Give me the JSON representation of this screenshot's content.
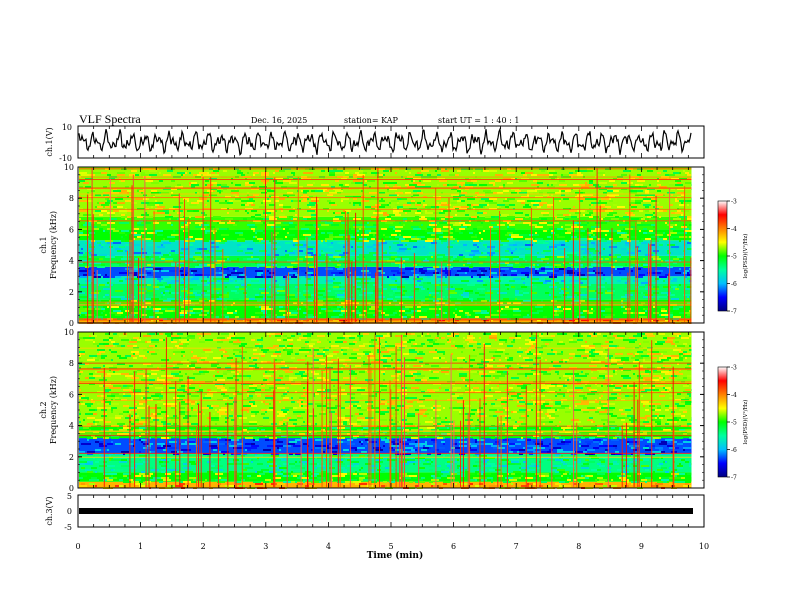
{
  "header": {
    "title": "VLF Spectra",
    "date": "Dec. 16, 2025",
    "station": "station= KAP",
    "start": "start  UT =   1 : 40 : 1"
  },
  "chart_data": {
    "type": "heatmap",
    "xlabel": "Time  (min)",
    "xlim": [
      0,
      10
    ],
    "xticks": [
      "0",
      "1",
      "2",
      "3",
      "4",
      "5",
      "6",
      "7",
      "8",
      "9",
      "10"
    ],
    "data_end_min": 9.8,
    "panels": [
      {
        "id": "ch1_waveform",
        "ylabel": "ch.1(V)",
        "ylim": [
          -10,
          10
        ],
        "yticks": [
          "10",
          "-10"
        ]
      },
      {
        "id": "ch1_spectrogram",
        "ylabel_line1": "ch.1",
        "ylabel_line2": "Frequency  (kHz)",
        "ylim": [
          0,
          10
        ],
        "yticks": [
          "0",
          "2",
          "4",
          "6",
          "8",
          "10"
        ],
        "frequency_bands_khz": [
          {
            "from": 0.0,
            "to": 0.3,
            "log_psd": -4.0
          },
          {
            "from": 0.3,
            "to": 1.5,
            "log_psd": -5.0
          },
          {
            "from": 1.5,
            "to": 2.5,
            "log_psd": -5.3
          },
          {
            "from": 2.5,
            "to": 3.0,
            "log_psd": -5.6
          },
          {
            "from": 3.0,
            "to": 3.6,
            "log_psd": -6.3
          },
          {
            "from": 3.6,
            "to": 4.3,
            "log_psd": -5.2
          },
          {
            "from": 4.3,
            "to": 5.3,
            "log_psd": -5.7
          },
          {
            "from": 5.3,
            "to": 6.0,
            "log_psd": -5.0
          },
          {
            "from": 6.0,
            "to": 6.8,
            "log_psd": -4.9
          },
          {
            "from": 6.8,
            "to": 10.0,
            "log_psd": -4.7
          }
        ]
      },
      {
        "id": "ch2_spectrogram",
        "ylabel_line1": "ch.2",
        "ylabel_line2": "Frequency  (kHz)",
        "ylim": [
          0,
          10
        ],
        "yticks": [
          "0",
          "2",
          "4",
          "6",
          "8",
          "10"
        ],
        "frequency_bands_khz": [
          {
            "from": 0.0,
            "to": 0.4,
            "log_psd": -4.2
          },
          {
            "from": 0.4,
            "to": 1.0,
            "log_psd": -5.0
          },
          {
            "from": 1.0,
            "to": 2.2,
            "log_psd": -5.4
          },
          {
            "from": 2.2,
            "to": 3.2,
            "log_psd": -6.3
          },
          {
            "from": 3.2,
            "to": 4.0,
            "log_psd": -5.0
          },
          {
            "from": 4.0,
            "to": 10.0,
            "log_psd": -4.7
          }
        ]
      },
      {
        "id": "ch3_waveform",
        "ylabel": "ch.3(V)",
        "ylim": [
          -5,
          5
        ],
        "yticks": [
          "5",
          "0",
          "-5"
        ],
        "trace_level_v": -0.5
      }
    ],
    "colorbar": {
      "label": "log(PSD)(V²/Hz)",
      "range": [
        -7,
        -3
      ],
      "ticks": [
        "-3",
        "-4",
        "-5",
        "-6",
        "-7"
      ],
      "colormap": [
        "#000080",
        "#0000ff",
        "#00bfff",
        "#00ffa0",
        "#00ff00",
        "#ffff00",
        "#ff8000",
        "#ff0000",
        "#ffffff"
      ]
    }
  }
}
